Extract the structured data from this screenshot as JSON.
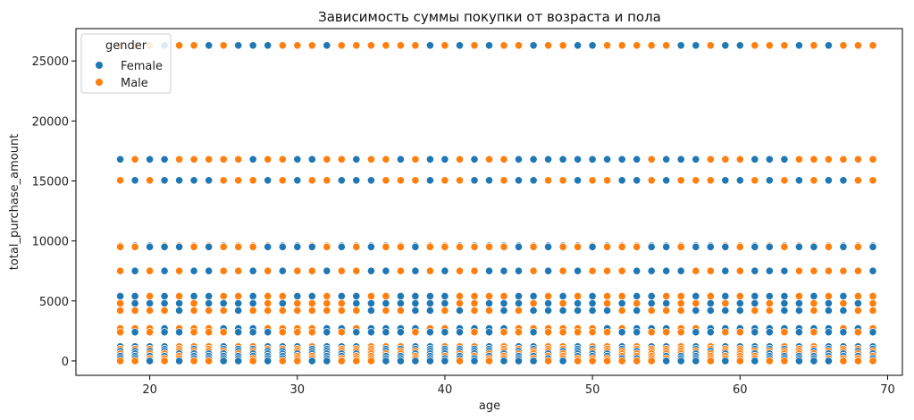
{
  "chart_data": {
    "type": "scatter",
    "title": "Зависимость суммы покупки от возраста и пола",
    "xlabel": "age",
    "ylabel": "total_purchase_amount",
    "xlim": [
      15,
      71
    ],
    "ylim": [
      -1200,
      27700
    ],
    "xticks": [
      20,
      30,
      40,
      50,
      60,
      70
    ],
    "yticks": [
      0,
      5000,
      10000,
      15000,
      20000,
      25000
    ],
    "grid": false,
    "legend": {
      "title": "gender",
      "position": "top-left"
    },
    "ages": [
      18,
      19,
      20,
      21,
      22,
      23,
      24,
      25,
      26,
      27,
      28,
      29,
      30,
      31,
      32,
      33,
      34,
      35,
      36,
      37,
      38,
      39,
      40,
      41,
      42,
      43,
      44,
      45,
      46,
      47,
      48,
      49,
      50,
      51,
      52,
      53,
      54,
      55,
      56,
      57,
      58,
      59,
      60,
      61,
      62,
      63,
      64,
      65,
      66,
      67,
      68,
      69
    ],
    "amount_levels": [
      26300,
      16800,
      15050,
      9600,
      9500,
      7500,
      5400,
      4800,
      4200,
      2700,
      2400,
      1200,
      1000,
      800,
      600,
      400,
      200,
      0
    ],
    "series": [
      {
        "name": "Female",
        "color": "#1f77b4"
      },
      {
        "name": "Male",
        "color": "#ff7f0e"
      }
    ]
  }
}
